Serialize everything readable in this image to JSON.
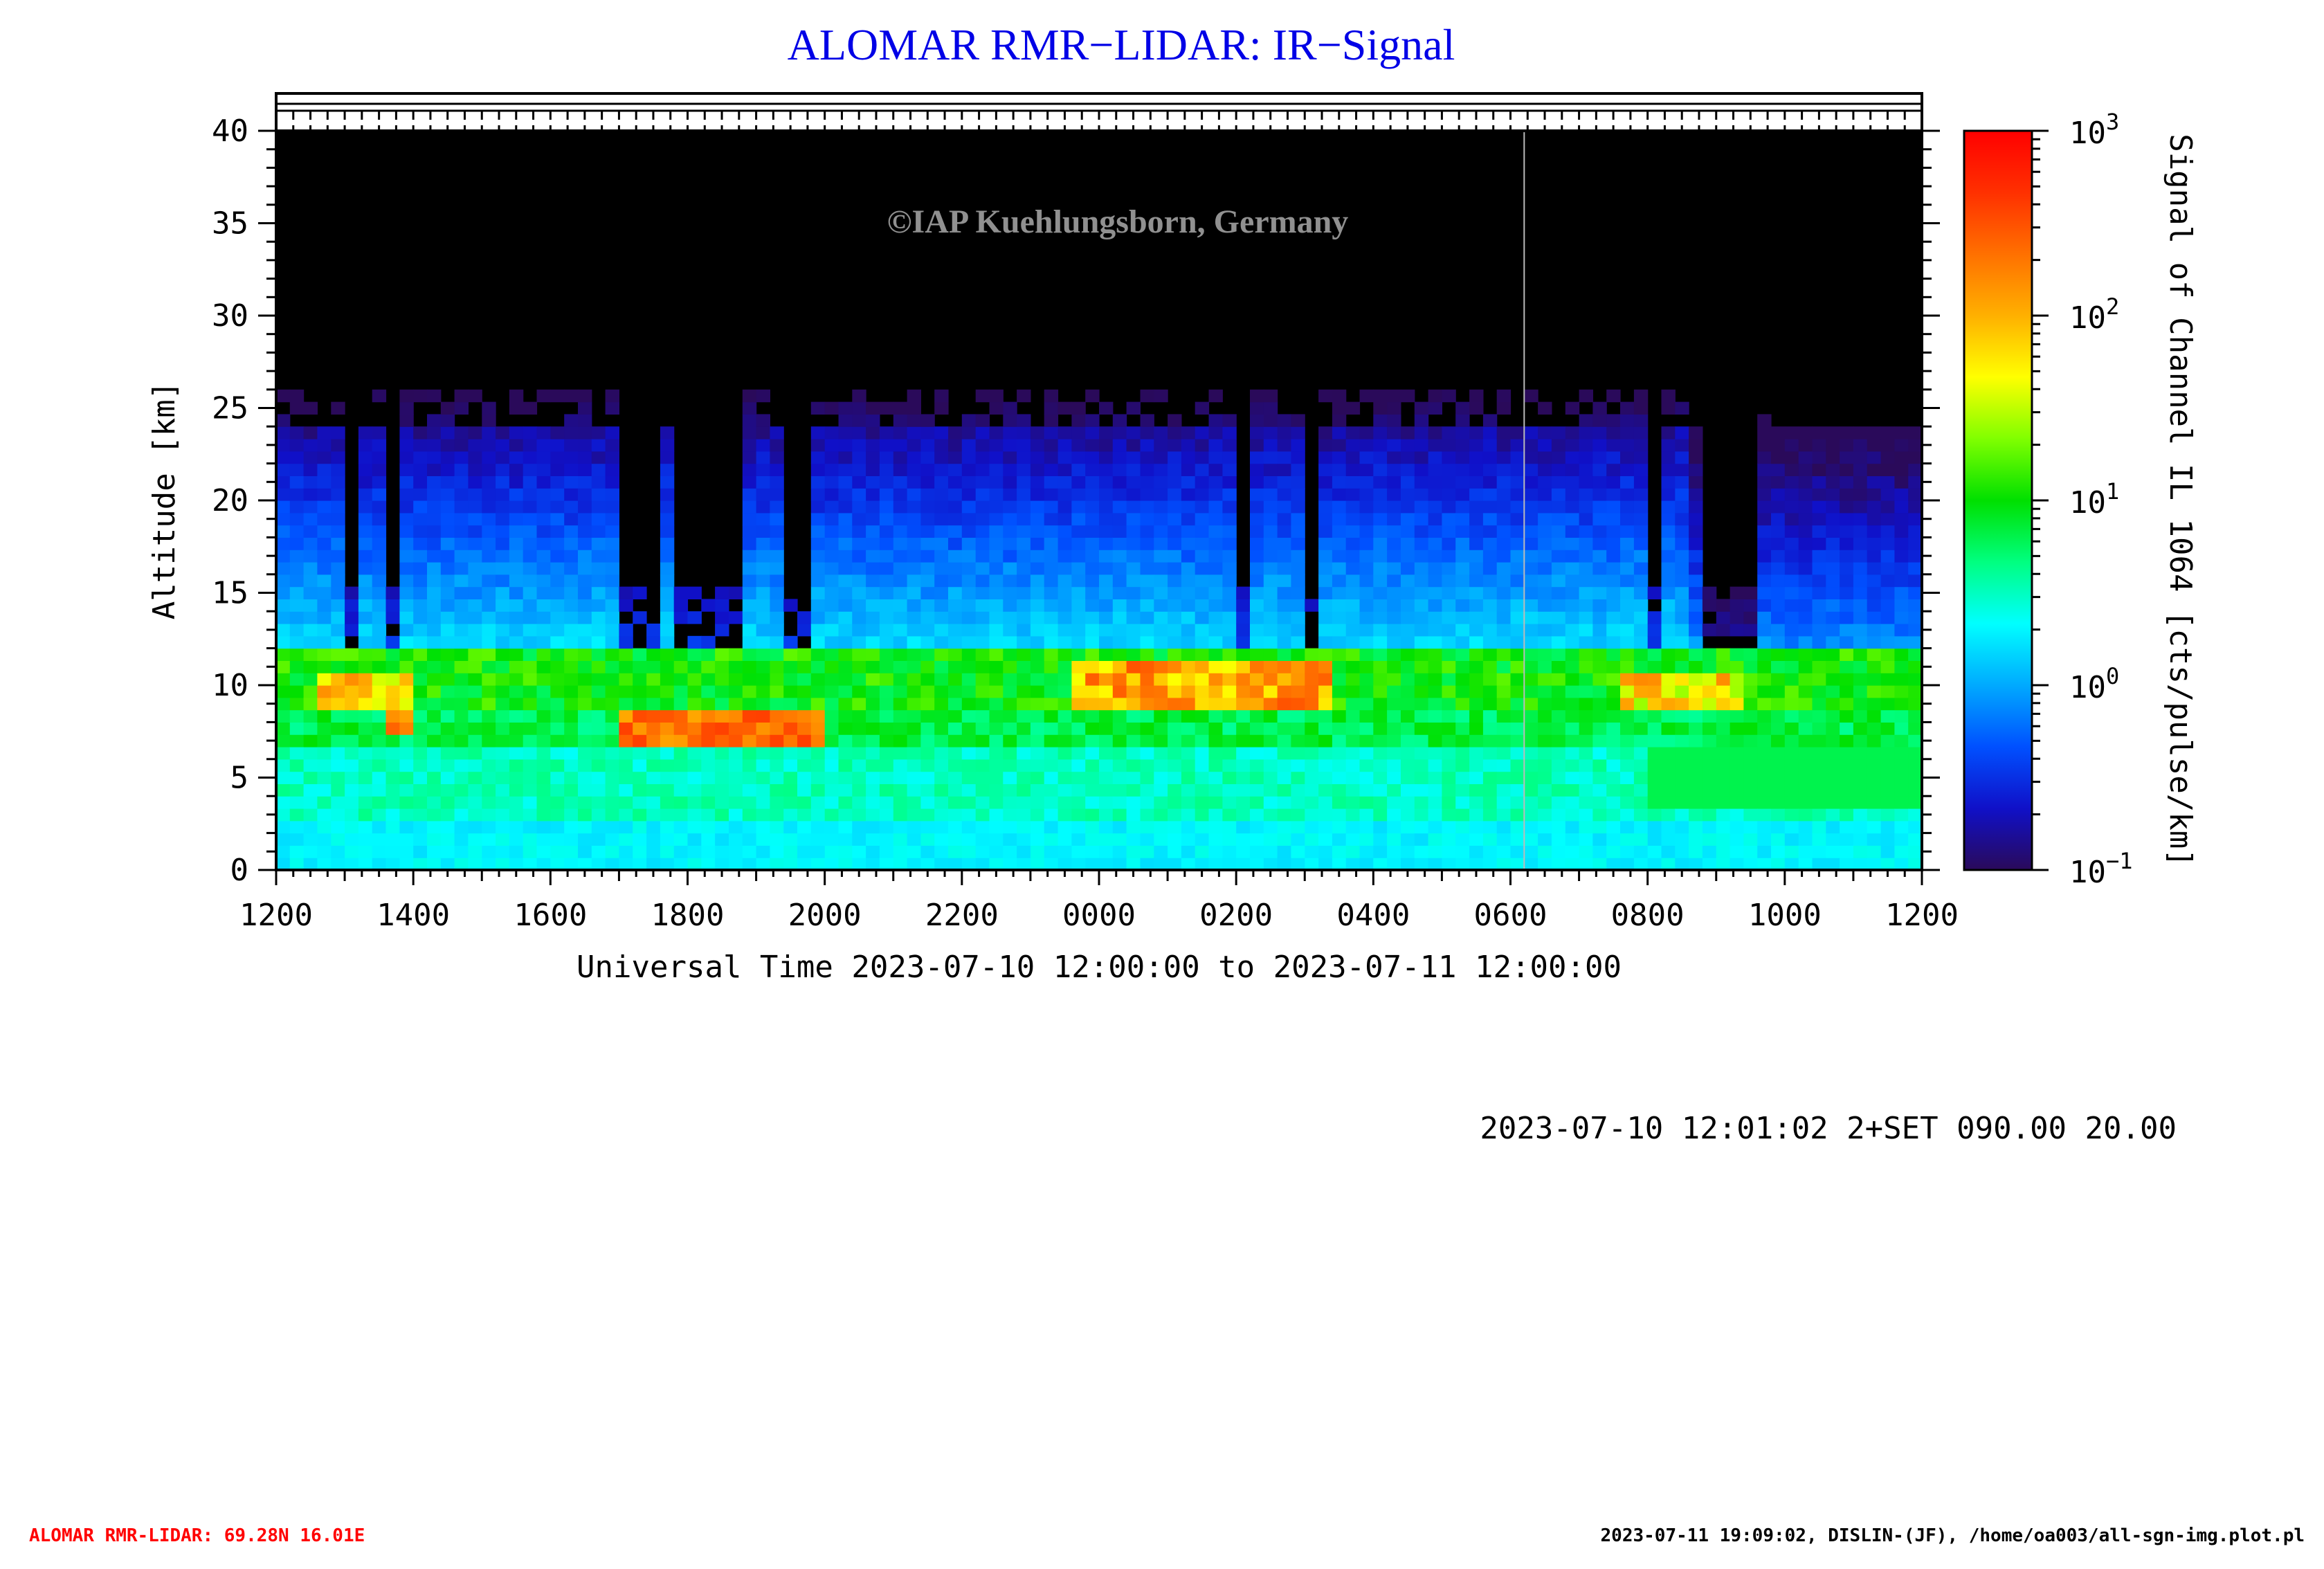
{
  "chart_data": {
    "type": "heatmap",
    "title": "ALOMAR RMR−LIDAR: IR−Signal",
    "watermark": "©IAP Kuehlungsborn, Germany",
    "xlabel": "Universal Time 2023-07-10 12:00:00 to 2023-07-11 12:00:00",
    "ylabel": "Altitude [km]",
    "x_range_hours": [
      0,
      24
    ],
    "x_tick_labels": [
      "1200",
      "1400",
      "1600",
      "1800",
      "2000",
      "2200",
      "0000",
      "0200",
      "0400",
      "0600",
      "0800",
      "1000",
      "1200"
    ],
    "ylim": [
      0,
      40
    ],
    "y_ticks": [
      0,
      5,
      10,
      15,
      20,
      25,
      30,
      35,
      40
    ],
    "colorbar": {
      "label": "Signal of Channel IL 1064 [cts/pulse/km]",
      "scale": "log",
      "range": [
        0.1,
        1000
      ],
      "tick_labels": [
        {
          "base": "10",
          "exp": "−1",
          "value": 0.1
        },
        {
          "base": "10",
          "exp": "0",
          "value": 1
        },
        {
          "base": "10",
          "exp": "1",
          "value": 10
        },
        {
          "base": "10",
          "exp": "2",
          "value": 100
        },
        {
          "base": "10",
          "exp": "3",
          "value": 1000
        }
      ],
      "colors": [
        "#2a0a5a",
        "#1010c8",
        "#0050ff",
        "#00aaff",
        "#00ffff",
        "#00ff80",
        "#00e000",
        "#80ff00",
        "#ffff00",
        "#ffb000",
        "#ff7000",
        "#ff3000",
        "#ff0000"
      ]
    },
    "data_notes": [
      {
        "x_hours": [
          0,
          24
        ],
        "y_km": [
          0,
          12
        ],
        "level": "high (10^0 - 10^1)"
      },
      {
        "x_hours": [
          0,
          24
        ],
        "y_km": [
          12,
          26
        ],
        "level": "low (10^-1 - 10^0)"
      },
      {
        "x_hours": [
          5.0,
          8.0
        ],
        "y_km": [
          7,
          8.5
        ],
        "level": "peak (~10^2.5)"
      },
      {
        "x_hours": [
          11.5,
          15.5
        ],
        "y_km": [
          8.5,
          11
        ],
        "level": "peak (~10^2.5)"
      }
    ]
  },
  "run_info": "2023-07-10 12:01:02 2+SET 090.00 20.00",
  "footer": {
    "left": "ALOMAR RMR-LIDAR: 69.28N 16.01E",
    "right": "2023-07-11 19:09:02, DISLIN-(JF), /home/oa003/all-sgn-img.plot.pl"
  },
  "colors": {
    "title": "#0000e6",
    "footer_left": "#ff0000",
    "watermark": "#909090"
  }
}
